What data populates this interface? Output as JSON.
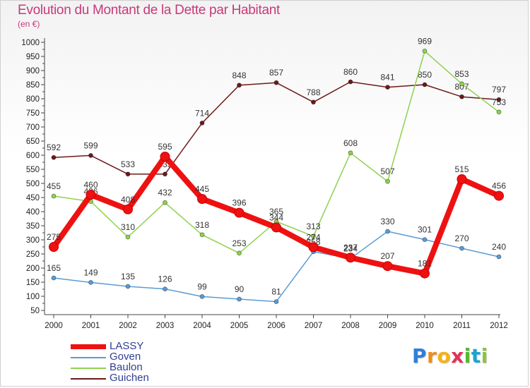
{
  "title": "Evolution du Montant de la Dette par Habitant",
  "subtitle": "(en €)",
  "logo": {
    "letters": [
      "P",
      "r",
      "o",
      "x",
      "i",
      "t",
      "i"
    ],
    "colors": [
      "#2e7fd6",
      "#f08c1a",
      "#f4b216",
      "#e0335a",
      "#57b82c",
      "#1aa3d8",
      "#8cc43c"
    ]
  },
  "chart_data": {
    "type": "line",
    "x": [
      "2000",
      "2001",
      "2002",
      "2003",
      "2004",
      "2005",
      "2006",
      "2007",
      "2008",
      "2009",
      "2010",
      "2011",
      "2012"
    ],
    "ylim": [
      50,
      1000
    ],
    "yticks": [
      50,
      100,
      150,
      200,
      250,
      300,
      350,
      400,
      450,
      500,
      550,
      600,
      650,
      700,
      750,
      800,
      850,
      900,
      950,
      1000
    ],
    "grid": false,
    "legend_placement": "bottom-left",
    "series": [
      {
        "name": "Guichen",
        "color": "#6b1a1a",
        "values": [
          592,
          599,
          533,
          533,
          714,
          848,
          857,
          788,
          860,
          841,
          850,
          807,
          797
        ],
        "labels": [
          "592",
          "599",
          "533",
          "533",
          "714",
          "848",
          "857",
          "788",
          "860",
          "841",
          "850",
          "807",
          "797"
        ]
      },
      {
        "name": "Baulon",
        "color": "#8fd14f",
        "values": [
          455,
          436,
          310,
          432,
          318,
          253,
          365,
          313,
          608,
          507,
          969,
          853,
          753
        ],
        "labels": [
          "455",
          "436",
          "310",
          "432",
          "318",
          "253",
          "365",
          "313",
          "608",
          "507",
          "969",
          "853",
          "753"
        ]
      },
      {
        "name": "Goven",
        "color": "#5b9bd5",
        "values": [
          165,
          149,
          135,
          126,
          99,
          90,
          81,
          258,
          234,
          330,
          301,
          270,
          240
        ],
        "labels": [
          "165",
          "149",
          "135",
          "126",
          "99",
          "90",
          "81",
          "258",
          "234",
          "330",
          "301",
          "270",
          "240"
        ]
      },
      {
        "name": "LASSY",
        "color": "#ee1111",
        "values": [
          275,
          460,
          408,
          595,
          445,
          396,
          344,
          274,
          237,
          207,
          181,
          515,
          456
        ],
        "labels": [
          "275",
          "460",
          "408",
          "595",
          "445",
          "396",
          "344",
          "274",
          "237",
          "207",
          "181",
          "515",
          "456"
        ]
      }
    ]
  },
  "legend": [
    {
      "name": "LASSY",
      "color": "#ee1111"
    },
    {
      "name": "Goven",
      "color": "#5b9bd5"
    },
    {
      "name": "Baulon",
      "color": "#8fd14f"
    },
    {
      "name": "Guichen",
      "color": "#6b1a1a"
    }
  ]
}
